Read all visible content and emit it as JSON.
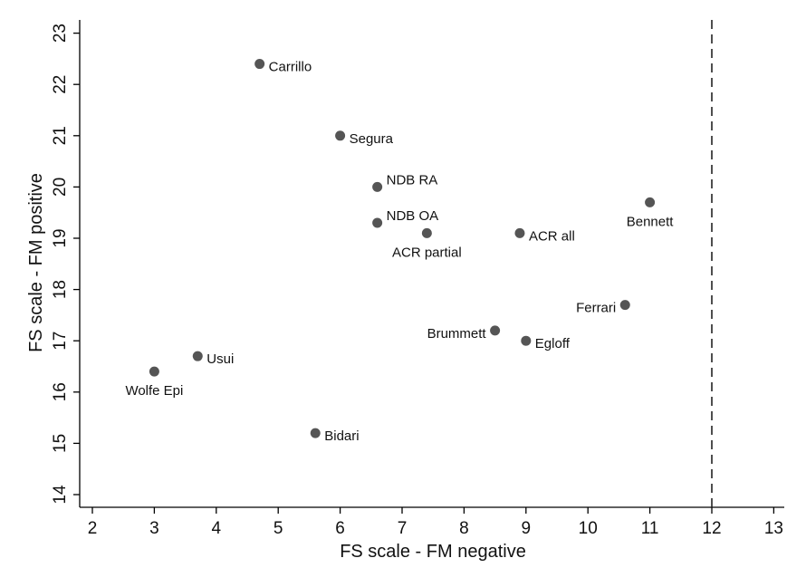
{
  "chart_data": {
    "type": "scatter",
    "xlabel": "FS scale - FM negative",
    "ylabel": "FS scale - FM positive",
    "xlim": [
      2,
      13
    ],
    "ylim": [
      14,
      23
    ],
    "xticks": [
      "2",
      "3",
      "4",
      "5",
      "6",
      "7",
      "8",
      "9",
      "10",
      "11",
      "12",
      "13"
    ],
    "yticks": [
      "14",
      "15",
      "16",
      "17",
      "18",
      "19",
      "20",
      "21",
      "22",
      "23"
    ],
    "grid": false,
    "reference_line": {
      "x": 12,
      "style": "dashed"
    },
    "marker_color": "#555555",
    "points": [
      {
        "label": "Carrillo",
        "x": 4.7,
        "y": 22.4,
        "label_pos": "right"
      },
      {
        "label": "Segura",
        "x": 6.0,
        "y": 21.0,
        "label_pos": "right"
      },
      {
        "label": "NDB RA",
        "x": 6.6,
        "y": 20.0,
        "label_pos": "upper-right"
      },
      {
        "label": "NDB OA",
        "x": 6.6,
        "y": 19.3,
        "label_pos": "upper-right"
      },
      {
        "label": "ACR partial",
        "x": 7.4,
        "y": 19.1,
        "label_pos": "below"
      },
      {
        "label": "ACR all",
        "x": 8.9,
        "y": 19.1,
        "label_pos": "right"
      },
      {
        "label": "Bennett",
        "x": 11.0,
        "y": 19.7,
        "label_pos": "below"
      },
      {
        "label": "Ferrari",
        "x": 10.6,
        "y": 17.7,
        "label_pos": "left"
      },
      {
        "label": "Brummett",
        "x": 8.5,
        "y": 17.2,
        "label_pos": "left"
      },
      {
        "label": "Egloff",
        "x": 9.0,
        "y": 17.0,
        "label_pos": "right"
      },
      {
        "label": "Usui",
        "x": 3.7,
        "y": 16.7,
        "label_pos": "right"
      },
      {
        "label": "Wolfe Epi",
        "x": 3.0,
        "y": 16.4,
        "label_pos": "below"
      },
      {
        "label": "Bidari",
        "x": 5.6,
        "y": 15.2,
        "label_pos": "right"
      }
    ]
  }
}
